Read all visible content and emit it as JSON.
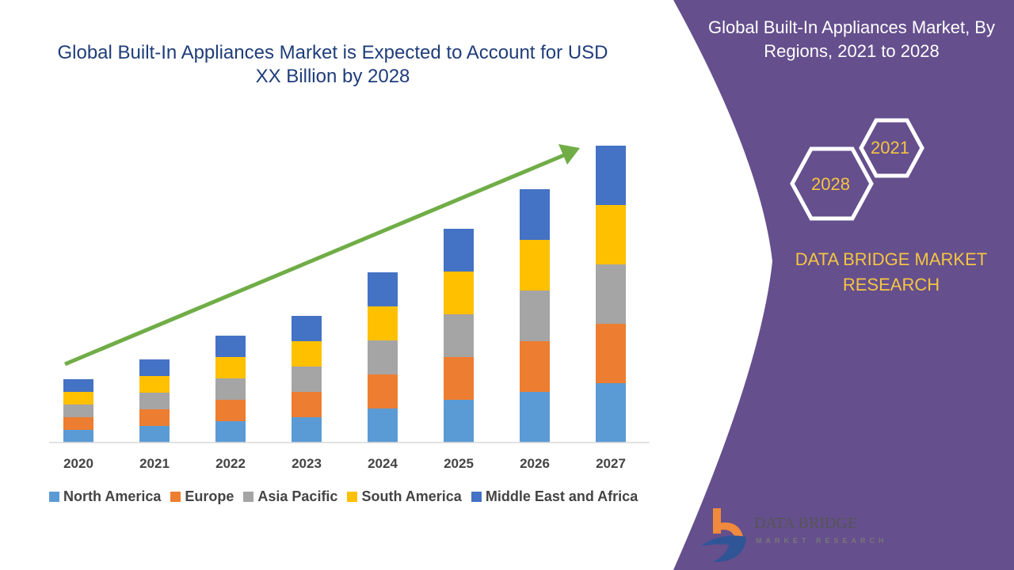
{
  "chart_data": {
    "type": "bar",
    "stacked": true,
    "title": "Global Built-In Appliances Market is Expected to Account for USD XX Billion by 2028",
    "categories": [
      "2020",
      "2021",
      "2022",
      "2023",
      "2024",
      "2025",
      "2026",
      "2027"
    ],
    "series": [
      {
        "name": "North America",
        "color": "#5b9bd5",
        "values": [
          16,
          21,
          27,
          32,
          43,
          54,
          64,
          75
        ]
      },
      {
        "name": "Europe",
        "color": "#ed7d31",
        "values": [
          16,
          21,
          27,
          32,
          43,
          54,
          64,
          75
        ]
      },
      {
        "name": "Asia Pacific",
        "color": "#a5a5a5",
        "values": [
          16,
          21,
          27,
          32,
          43,
          54,
          64,
          75
        ]
      },
      {
        "name": "South America",
        "color": "#ffc000",
        "values": [
          16,
          21,
          27,
          32,
          43,
          54,
          64,
          75
        ]
      },
      {
        "name": "Middle East and Africa",
        "color": "#4472c4",
        "values": [
          16,
          21,
          27,
          32,
          43,
          54,
          64,
          75
        ]
      }
    ],
    "y_axis_visible": false,
    "grid": false,
    "legend_position": "bottom",
    "trend_arrow_color": "#70ad47"
  },
  "side_panel": {
    "title": "Global Built-In Appliances Market, By Regions, 2021 to 2028",
    "hex_years": [
      "2021",
      "2028"
    ],
    "brand": "DATA BRIDGE MARKET RESEARCH",
    "background_color": "#654f8d",
    "logo_text": "DATA BRIDGE",
    "logo_subtext": "MARKET RESEARCH"
  }
}
